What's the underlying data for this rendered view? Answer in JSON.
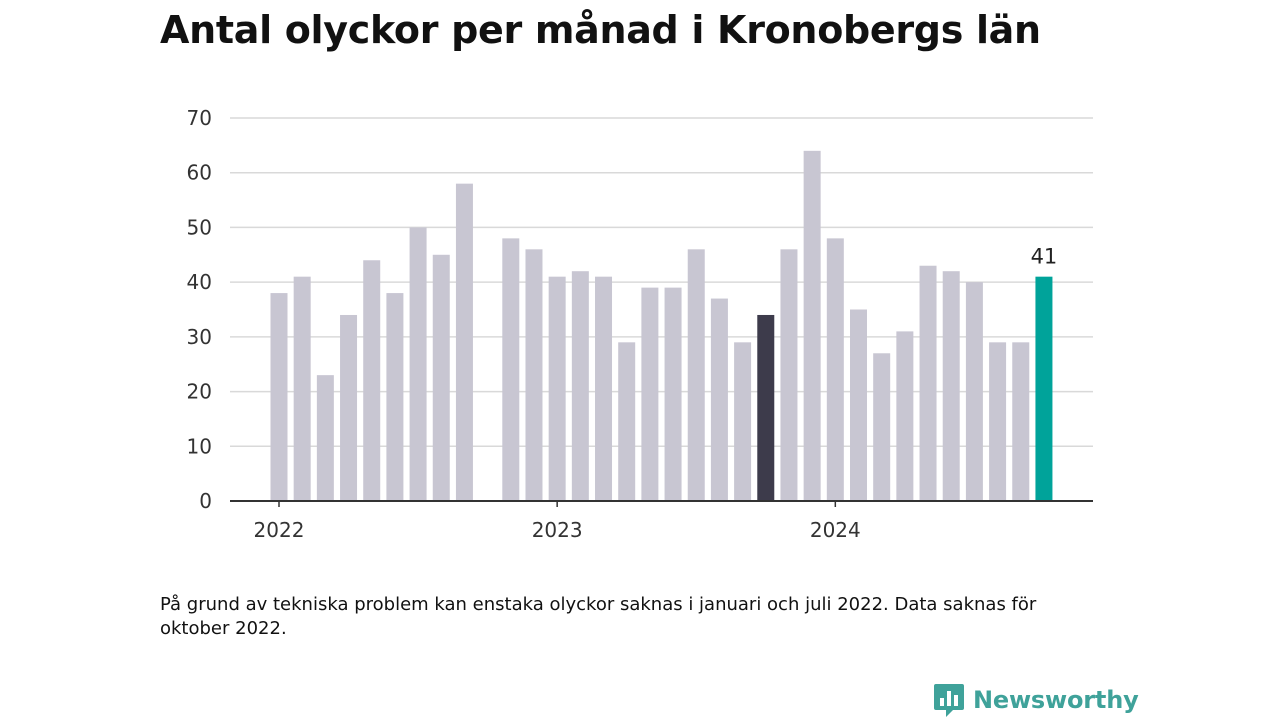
{
  "title": "Antal olyckor per månad i Kronobergs län",
  "note": "På grund av tekniska problem kan enstaka olyckor saknas i januari och juli 2022. Data saknas för oktober 2022.",
  "brand": {
    "name": "Newsworthy",
    "icon": "newsworthy-logo-icon"
  },
  "colors": {
    "default": "#c8c6d2",
    "highlight": "#3d3b4b",
    "latest": "#00a39a",
    "grid": "#d9d9d9",
    "axis": "#333333"
  },
  "chart_data": {
    "type": "bar",
    "title": "Antal olyckor per månad i Kronobergs län",
    "xlabel": "",
    "ylabel": "",
    "ylim": [
      0,
      70
    ],
    "yticks": [
      "0",
      "10",
      "20",
      "30",
      "40",
      "50",
      "60",
      "70"
    ],
    "xtick_labels": [
      {
        "label": "2022",
        "category": "2022-01"
      },
      {
        "label": "2023",
        "category": "2023-01"
      },
      {
        "label": "2024",
        "category": "2024-01"
      }
    ],
    "grid": true,
    "categories": [
      "2022-01",
      "2022-02",
      "2022-03",
      "2022-04",
      "2022-05",
      "2022-06",
      "2022-07",
      "2022-08",
      "2022-09",
      "2022-10",
      "2022-11",
      "2022-12",
      "2023-01",
      "2023-02",
      "2023-03",
      "2023-04",
      "2023-05",
      "2023-06",
      "2023-07",
      "2023-08",
      "2023-09",
      "2023-10",
      "2023-11",
      "2023-12",
      "2024-01",
      "2024-02",
      "2024-03",
      "2024-04",
      "2024-05",
      "2024-06",
      "2024-07",
      "2024-08",
      "2024-09",
      "2024-10"
    ],
    "values": [
      38,
      41,
      23,
      34,
      44,
      38,
      50,
      45,
      58,
      null,
      48,
      46,
      41,
      42,
      41,
      29,
      39,
      39,
      46,
      37,
      29,
      34,
      46,
      64,
      48,
      35,
      27,
      31,
      43,
      42,
      40,
      29,
      29,
      41
    ],
    "highlighted": "2023-10",
    "latest_label": "41"
  }
}
